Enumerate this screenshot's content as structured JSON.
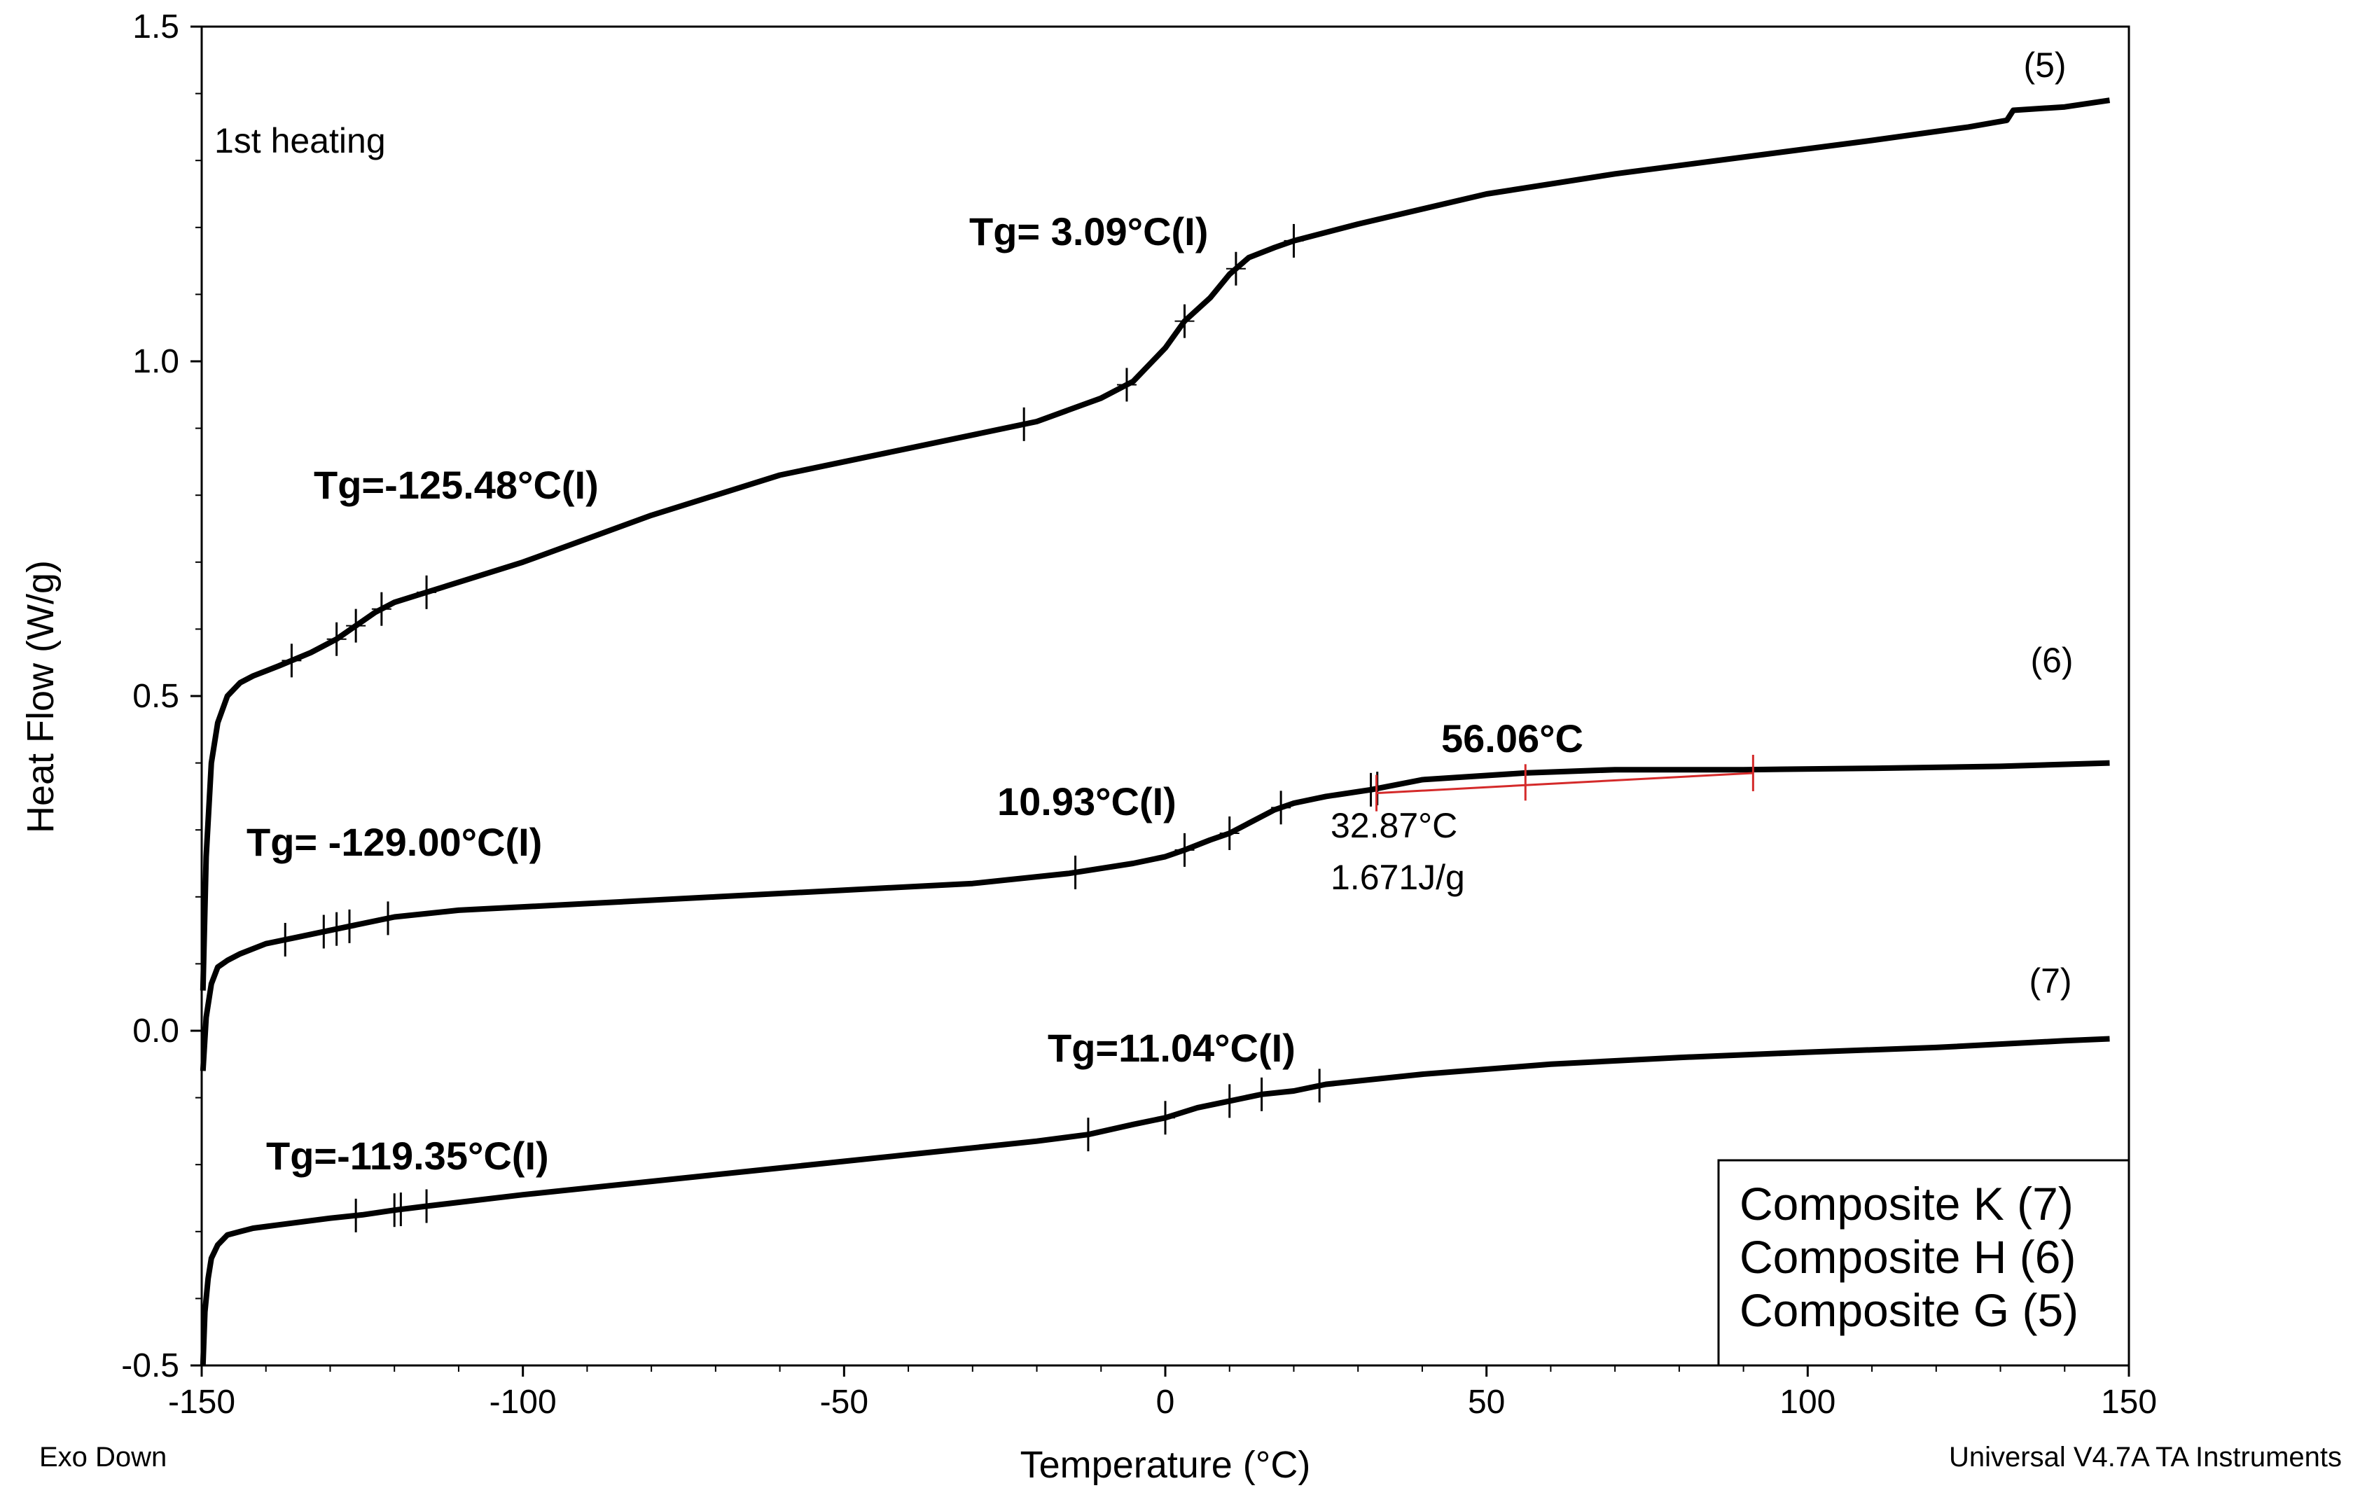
{
  "chart_data": {
    "type": "line",
    "title": "",
    "xlabel": "Temperature (°C)",
    "ylabel": "Heat Flow (W/g)",
    "xlim": [
      -150,
      150
    ],
    "ylim": [
      -0.5,
      1.5
    ],
    "xticks": [
      "-150",
      "-100",
      "-50",
      "0",
      "50",
      "100",
      "150"
    ],
    "yticks": [
      "-0.5",
      "0.0",
      "0.5",
      "1.0",
      "1.5"
    ],
    "xtick_values": [
      -150,
      -100,
      -50,
      0,
      50,
      100,
      150
    ],
    "ytick_values": [
      -0.5,
      0.0,
      0.5,
      1.0,
      1.5
    ],
    "heating_label": "1st heating",
    "exo_label": "Exo Down",
    "software_label": "Universal V4.7A TA Instruments",
    "series": [
      {
        "name": "Composite G (5)",
        "marker": "(5)",
        "x": [
          -149.8,
          -149.3,
          -148.5,
          -147.5,
          -146,
          -144,
          -142,
          -138,
          -133,
          -129,
          -126,
          -123,
          -120,
          -115,
          -100,
          -80,
          -60,
          -40,
          -20,
          -10,
          -5,
          0,
          3,
          7,
          10,
          13,
          17,
          20,
          30,
          50,
          70,
          90,
          110,
          125,
          131,
          132,
          140,
          147
        ],
        "y": [
          0.06,
          0.26,
          0.4,
          0.46,
          0.5,
          0.52,
          0.53,
          0.545,
          0.565,
          0.585,
          0.605,
          0.625,
          0.64,
          0.655,
          0.7,
          0.77,
          0.83,
          0.87,
          0.91,
          0.945,
          0.97,
          1.02,
          1.06,
          1.095,
          1.13,
          1.155,
          1.17,
          1.18,
          1.205,
          1.25,
          1.28,
          1.305,
          1.33,
          1.35,
          1.36,
          1.375,
          1.38,
          1.39
        ]
      },
      {
        "name": "Composite H (6)",
        "marker": "(6)",
        "x": [
          -149.8,
          -149.3,
          -148.5,
          -147.5,
          -146,
          -144,
          -140,
          -135,
          -130,
          -125,
          -120,
          -110,
          -90,
          -70,
          -50,
          -30,
          -15,
          -5,
          0,
          3,
          7,
          10,
          13,
          17,
          20,
          25,
          32,
          40,
          56,
          70,
          90,
          110,
          130,
          147
        ],
        "y": [
          -0.06,
          0.02,
          0.07,
          0.095,
          0.105,
          0.115,
          0.13,
          0.14,
          0.15,
          0.16,
          0.17,
          0.18,
          0.19,
          0.2,
          0.21,
          0.22,
          0.235,
          0.25,
          0.26,
          0.27,
          0.285,
          0.295,
          0.31,
          0.33,
          0.34,
          0.35,
          0.36,
          0.375,
          0.385,
          0.39,
          0.39,
          0.392,
          0.395,
          0.4
        ]
      },
      {
        "name": "Composite K (7)",
        "marker": "(7)",
        "x": [
          -149.8,
          -149.5,
          -149,
          -148.5,
          -147.5,
          -146,
          -144,
          -142,
          -138,
          -130,
          -125,
          -120,
          -115,
          -100,
          -80,
          -60,
          -40,
          -20,
          -12,
          -5,
          0,
          5,
          10,
          15,
          20,
          25,
          40,
          60,
          80,
          100,
          120,
          140,
          147
        ],
        "y": [
          -0.5,
          -0.42,
          -0.37,
          -0.34,
          -0.32,
          -0.305,
          -0.3,
          -0.295,
          -0.29,
          -0.28,
          -0.275,
          -0.268,
          -0.262,
          -0.245,
          -0.225,
          -0.205,
          -0.185,
          -0.165,
          -0.155,
          -0.14,
          -0.13,
          -0.115,
          -0.105,
          -0.095,
          -0.09,
          -0.08,
          -0.065,
          -0.05,
          -0.04,
          -0.032,
          -0.025,
          -0.015,
          -0.012
        ]
      }
    ],
    "tick_marks": [
      {
        "series": 0,
        "x": [
          -136,
          -129,
          -126,
          -122,
          -115,
          -22,
          -6,
          3,
          11,
          20
        ]
      },
      {
        "series": 1,
        "x": [
          -137,
          -131,
          -129,
          -127,
          -121,
          -14,
          3,
          10,
          18,
          32,
          33
        ]
      },
      {
        "series": 2,
        "x": [
          -126,
          -120,
          -119,
          -115,
          -12,
          0,
          10,
          15,
          24
        ]
      }
    ],
    "integration": {
      "from_x": 32.87,
      "to_x": 91.5,
      "mid_x": 56.06,
      "from_y": 0.355,
      "to_y": 0.385,
      "mid_y": 0.371,
      "color": "#d42a2a"
    },
    "annotations": [
      {
        "text": "Tg= 3.09°C(I)",
        "x": 3.09
      },
      {
        "text": "Tg=-125.48°C(I)",
        "x": -125.48
      },
      {
        "text": "Tg= -129.00°C(I)",
        "x": -129.0
      },
      {
        "text": "10.93°C(I)",
        "x": 10.93
      },
      {
        "text": "56.06°C",
        "x": 56.06
      },
      {
        "text": "Tg=11.04°C(I)",
        "x": 11.04
      },
      {
        "text": "Tg=-119.35°C(I)",
        "x": -119.35
      }
    ],
    "peak_onset": "32.87°C",
    "enthalpy": "1.671J/g",
    "legend": [
      "Composite K (7)",
      "Composite H (6)",
      "Composite G (5)"
    ],
    "legend_position": "bottom-right"
  }
}
